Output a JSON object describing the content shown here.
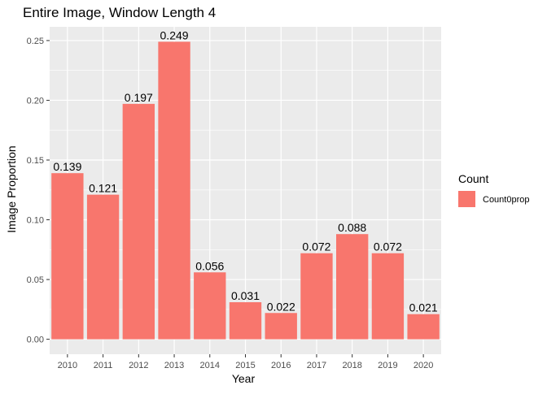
{
  "chart_data": {
    "type": "bar",
    "title": "Entire Image, Window Length 4",
    "xlabel": "Year",
    "ylabel": "Image Proportion",
    "categories": [
      "2010",
      "2011",
      "2012",
      "2013",
      "2014",
      "2015",
      "2016",
      "2017",
      "2018",
      "2019",
      "2020"
    ],
    "series": [
      {
        "name": "Count0prop",
        "values": [
          0.139,
          0.121,
          0.197,
          0.249,
          0.056,
          0.031,
          0.022,
          0.072,
          0.088,
          0.072,
          0.021
        ],
        "labels": [
          "0.139",
          "0.121",
          "0.197",
          "0.249",
          "0.056",
          "0.031",
          "0.022",
          "0.072",
          "0.088",
          "0.072",
          "0.021"
        ]
      }
    ],
    "ylim": [
      -0.0125,
      0.2615
    ],
    "yticks": [
      0.0,
      0.05,
      0.1,
      0.15,
      0.2,
      0.25
    ],
    "ytick_labels": [
      "0.00",
      "0.05",
      "0.10",
      "0.15",
      "0.20",
      "0.25"
    ],
    "grid": true,
    "legend": {
      "title": "Count",
      "placement": "right"
    },
    "colors": {
      "bar": "#F8766D",
      "panel": "#EBEBEB",
      "grid": "#FFFFFF",
      "text": "#000000",
      "tick_text": "#4D4D4D"
    }
  }
}
